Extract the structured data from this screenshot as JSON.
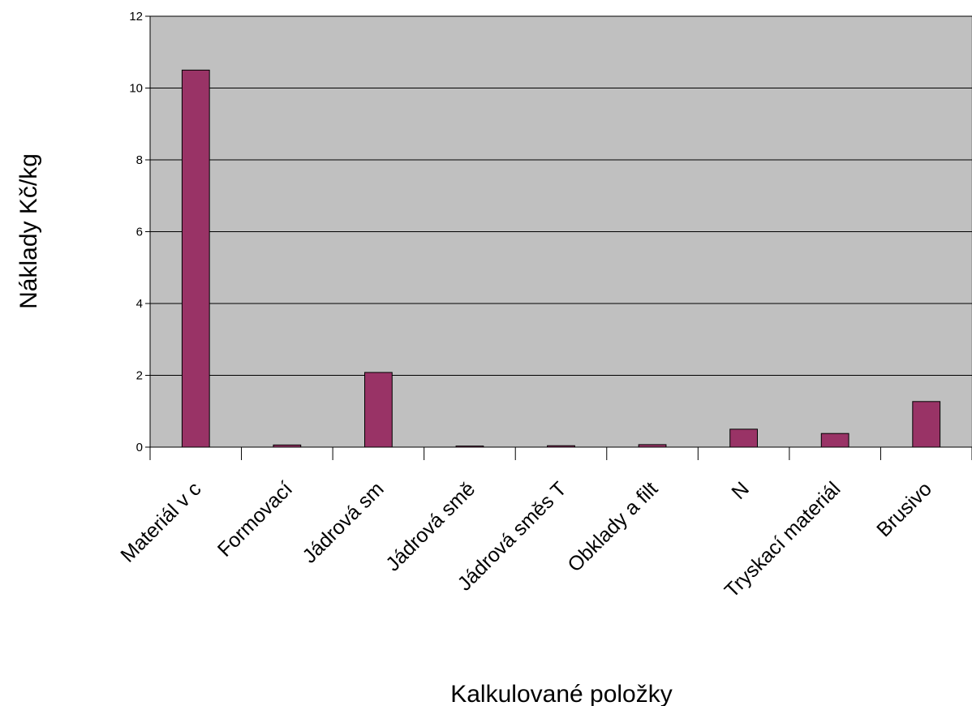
{
  "chart_data": {
    "type": "bar",
    "title": "",
    "xlabel": "Kalkulované položky",
    "ylabel": "Náklady Kč/kg",
    "ylim": [
      0,
      12
    ],
    "yticks": [
      0,
      2,
      4,
      6,
      8,
      10,
      12
    ],
    "grid": true,
    "legend": "none",
    "categories": [
      "Materiál v c",
      "Formovací",
      "Jádrová sm",
      "Jádrová smě",
      "Jádrová směs T",
      "Obklady a filt",
      "N",
      "Tryskací materiál",
      "Brusivo"
    ],
    "values": [
      10.5,
      0.06,
      2.08,
      0.03,
      0.04,
      0.07,
      0.5,
      0.38,
      1.27
    ],
    "colors": {
      "bar": "#993366",
      "plot_background": "#c0c0c0",
      "gridline": "#000000"
    }
  }
}
